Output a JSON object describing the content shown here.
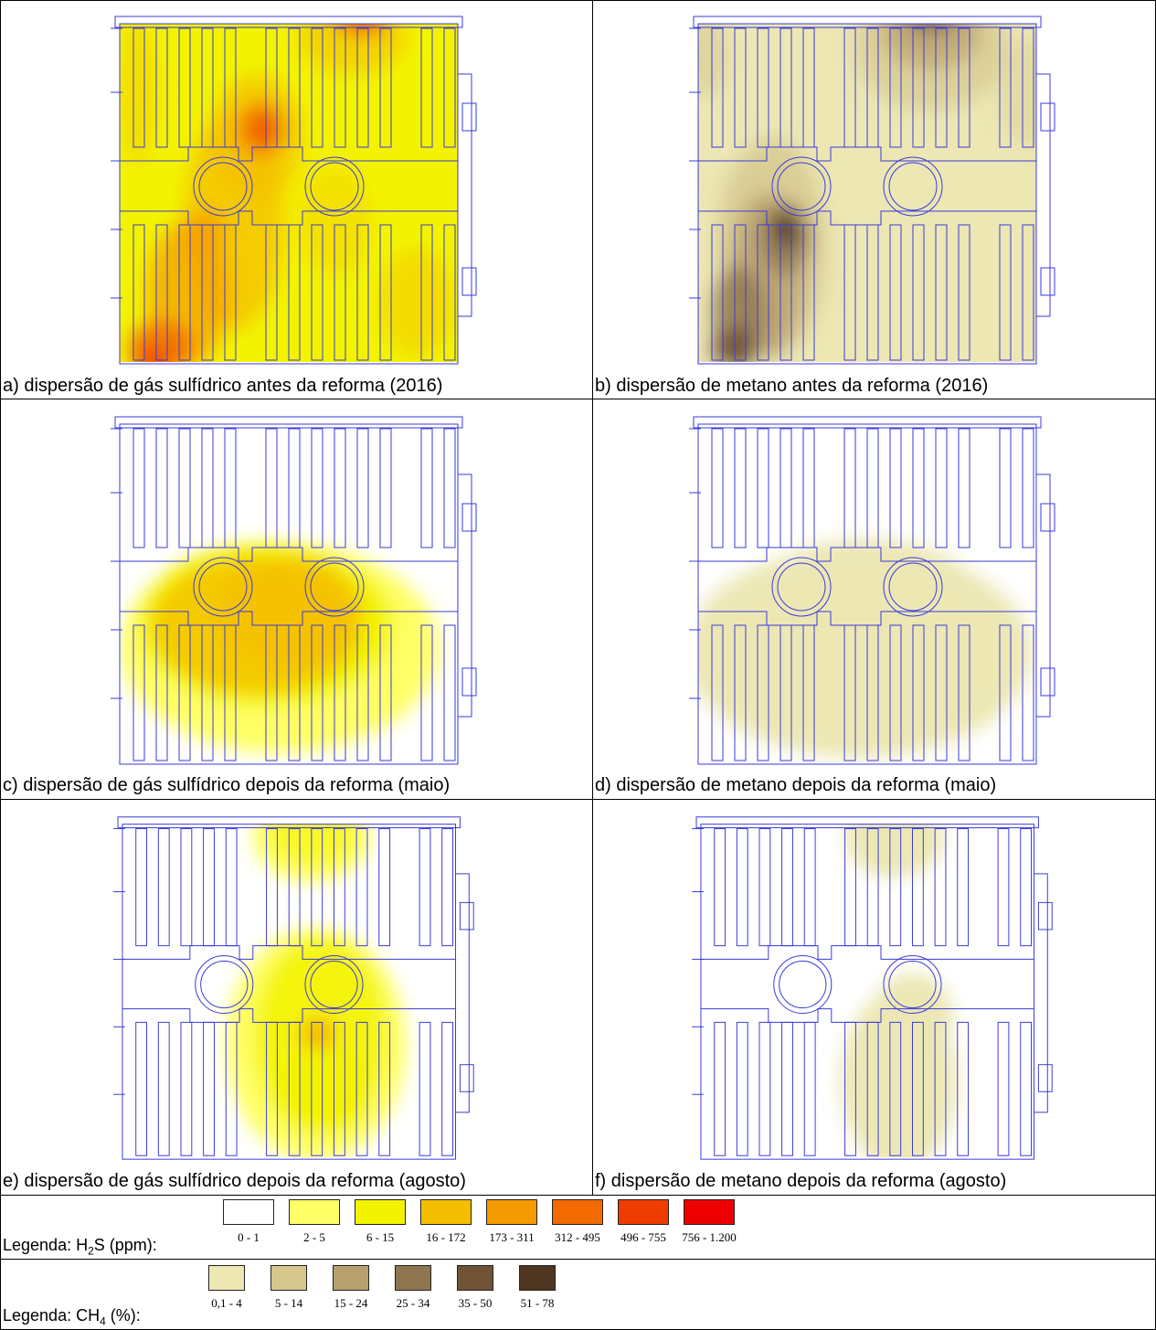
{
  "colors": {
    "plan_line": "#3a3adc",
    "h2s_scale": [
      "#ffffff",
      "#ffff66",
      "#f3f300",
      "#f4bf00",
      "#f59a00",
      "#f26a00",
      "#ef3c00",
      "#ef0000"
    ],
    "ch4_scale": [
      "#ece7b3",
      "#d6c78f",
      "#b8a06c",
      "#8e7650",
      "#705336",
      "#4e3620"
    ]
  },
  "panels": [
    {
      "caption": "a) dispersão de gás sulfídrico antes da reforma (2016)",
      "gas": "h2s"
    },
    {
      "caption": "b) dispersão de metano antes da reforma (2016)",
      "gas": "ch4"
    },
    {
      "caption": "c) dispersão de gás sulfídrico depois da reforma (maio)",
      "gas": "h2s"
    },
    {
      "caption": "d) dispersão de metano depois da reforma (maio)",
      "gas": "ch4"
    },
    {
      "caption": "e) dispersão de gás sulfídrico depois da reforma (agosto)",
      "gas": "h2s"
    },
    {
      "caption": "f) dispersão de metano depois da reforma (agosto)",
      "gas": "ch4"
    }
  ],
  "legend_h2s": {
    "label_prefix": "Legenda: H",
    "label_sub": "2",
    "label_suffix": "S (ppm):",
    "ranges": [
      "0 - 1",
      "2 - 5",
      "6 - 15",
      "16 - 172",
      "173 - 311",
      "312 - 495",
      "496 - 755",
      "756 - 1.200"
    ]
  },
  "legend_ch4": {
    "label_prefix": "Legenda: CH",
    "label_sub": "4",
    "label_suffix": " (%):",
    "ranges": [
      "0,1 - 4",
      "5 - 14",
      "15 - 24",
      "25 - 34",
      "35 - 50",
      "51 - 78"
    ]
  }
}
